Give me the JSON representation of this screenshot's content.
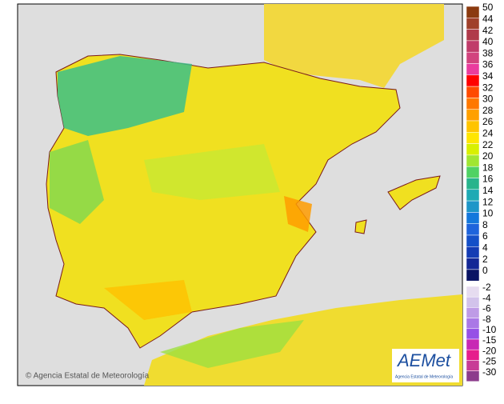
{
  "map": {
    "copyright": "© Agencia Estatal de Meteorología",
    "logo": {
      "name": "AEMet",
      "subtitle": "Agencia Estatal de Meteorología"
    },
    "legend": {
      "warm": [
        {
          "label": "50",
          "color": "#8b3a10"
        },
        {
          "label": "44",
          "color": "#a0402a"
        },
        {
          "label": "42",
          "color": "#b03a4a"
        },
        {
          "label": "40",
          "color": "#c03c6a"
        },
        {
          "label": "38",
          "color": "#d2447e"
        },
        {
          "label": "36",
          "color": "#ea3c9e"
        },
        {
          "label": "34",
          "color": "#ff0000"
        },
        {
          "label": "32",
          "color": "#ff4a00"
        },
        {
          "label": "30",
          "color": "#ff7800"
        },
        {
          "label": "28",
          "color": "#ffa000"
        },
        {
          "label": "26",
          "color": "#ffc400"
        },
        {
          "label": "24",
          "color": "#ffe600"
        },
        {
          "label": "22",
          "color": "#d8f000"
        },
        {
          "label": "20",
          "color": "#a0e632"
        },
        {
          "label": "18",
          "color": "#50d264"
        },
        {
          "label": "16",
          "color": "#28b48c"
        },
        {
          "label": "14",
          "color": "#1eaab4"
        },
        {
          "label": "12",
          "color": "#1e96c8"
        },
        {
          "label": "10",
          "color": "#1478dc"
        },
        {
          "label": "8",
          "color": "#1e64dc"
        },
        {
          "label": "6",
          "color": "#1450c8"
        },
        {
          "label": "4",
          "color": "#143cb4"
        },
        {
          "label": "2",
          "color": "#142896"
        },
        {
          "label": "0",
          "color": "#0a1464"
        }
      ],
      "cold": [
        {
          "label": "-2",
          "color": "#e6dcf0"
        },
        {
          "label": "-4",
          "color": "#d2c3eb"
        },
        {
          "label": "-6",
          "color": "#be9be6"
        },
        {
          "label": "-8",
          "color": "#aa78e6"
        },
        {
          "label": "-10",
          "color": "#9650e6"
        },
        {
          "label": "-15",
          "color": "#c828b4"
        },
        {
          "label": "-20",
          "color": "#e61e8c"
        },
        {
          "label": "-25",
          "color": "#c83c96"
        },
        {
          "label": "-30",
          "color": "#8c3c8c"
        }
      ]
    }
  }
}
